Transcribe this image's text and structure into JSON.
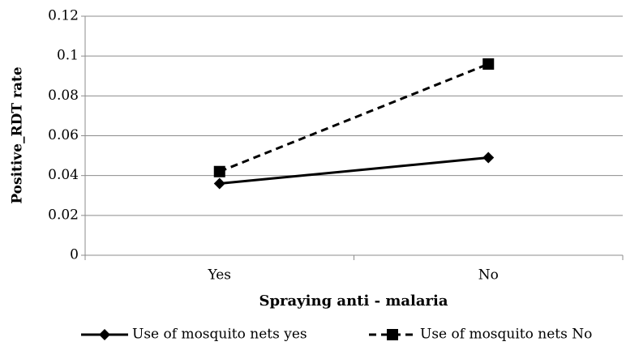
{
  "chart_data": {
    "type": "line",
    "xlabel": "Spraying anti - malaria",
    "ylabel": "Positive_RDT rate",
    "categories": [
      "Yes",
      "No"
    ],
    "series": [
      {
        "name": "Use of mosquito nets yes",
        "color": "#000000",
        "line_style": "solid",
        "marker": "diamond",
        "values": [
          0.036,
          0.049
        ]
      },
      {
        "name": "Use of mosquito nets No",
        "color": "#000000",
        "line_style": "dashed",
        "marker": "square",
        "values": [
          0.042,
          0.096
        ]
      }
    ],
    "ylim": [
      0,
      0.12
    ],
    "yticks": [
      0,
      0.02,
      0.04,
      0.06,
      0.08,
      0.1,
      0.12
    ],
    "grid": true,
    "legend": "bottom"
  }
}
